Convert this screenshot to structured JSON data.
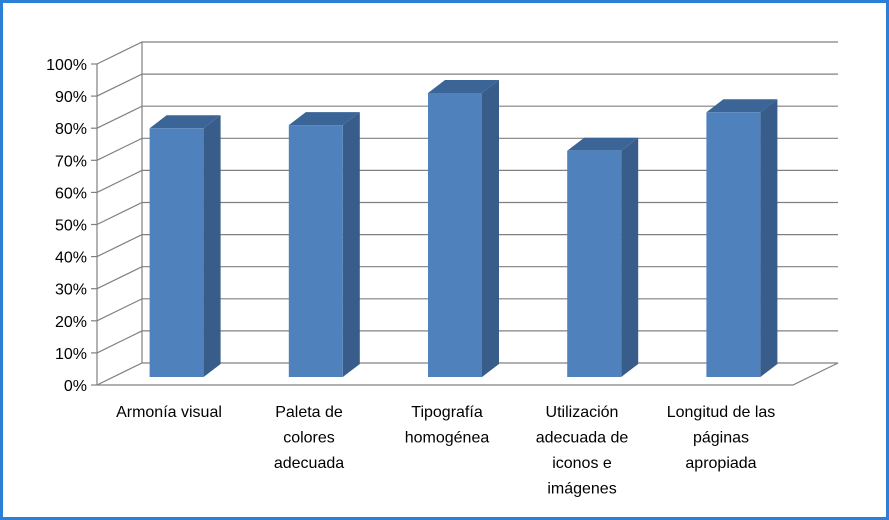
{
  "chart_data": {
    "type": "bar",
    "style": "3d-column",
    "title": "",
    "xlabel": "",
    "ylabel": "",
    "categories": [
      [
        "Armonía visual"
      ],
      [
        "Paleta de",
        "colores",
        "adecuada"
      ],
      [
        "Tipografía",
        "homogénea"
      ],
      [
        "Utilización",
        "adecuada de",
        "iconos  e",
        "imágenes"
      ],
      [
        "Longitud de las",
        "páginas",
        "apropiada"
      ]
    ],
    "values": [
      79,
      80,
      90,
      72,
      84
    ],
    "ylim": [
      0,
      100
    ],
    "yticks": [
      "0%",
      "10%",
      "20%",
      "30%",
      "40%",
      "50%",
      "60%",
      "70%",
      "80%",
      "90%",
      "100%"
    ],
    "grid": true,
    "legend": "none",
    "colors": {
      "bar_front": "#4f81bd",
      "bar_side": "#385d8a",
      "bar_top": "#3a6596",
      "grid": "#808080",
      "border": "#2b7fd4"
    }
  }
}
